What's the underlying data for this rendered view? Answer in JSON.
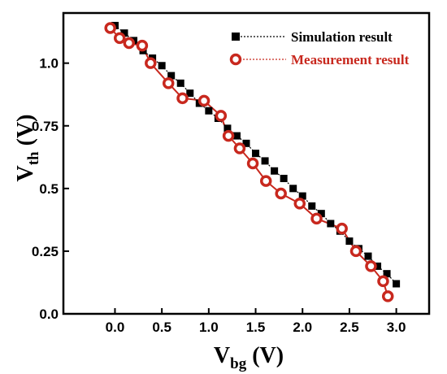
{
  "chart_data": {
    "type": "scatter",
    "xlabel": {
      "main": "V",
      "sub": "bg",
      "unit": " (V)"
    },
    "ylabel": {
      "main": "V",
      "sub": "th",
      "unit": " (V)"
    },
    "xlim": [
      -0.55,
      3.35
    ],
    "ylim": [
      0.0,
      1.2
    ],
    "x_ticks": [
      0.0,
      0.5,
      1.0,
      1.5,
      2.0,
      2.5,
      3.0
    ],
    "x_tick_labels": [
      "0.0",
      "0.5",
      "1.0",
      "1.5",
      "2.0",
      "2.5",
      "3.0"
    ],
    "y_ticks": [
      0.0,
      0.25,
      0.5,
      0.75,
      1.0
    ],
    "y_tick_labels": [
      "0.0",
      "0.25",
      "0.5",
      "0.75",
      "1.0"
    ],
    "legend_position": "top-right",
    "grid": false,
    "series": [
      {
        "name": "Simulation result",
        "marker": "square",
        "color": "#000000",
        "line_style": "dotted",
        "x": [
          0.0,
          0.1,
          0.2,
          0.3,
          0.4,
          0.5,
          0.6,
          0.7,
          0.8,
          0.9,
          1.0,
          1.1,
          1.2,
          1.3,
          1.4,
          1.5,
          1.6,
          1.7,
          1.8,
          1.9,
          2.0,
          2.1,
          2.2,
          2.3,
          2.4,
          2.5,
          2.6,
          2.7,
          2.8,
          2.9,
          3.0
        ],
        "y": [
          1.15,
          1.12,
          1.09,
          1.05,
          1.02,
          0.99,
          0.95,
          0.92,
          0.88,
          0.84,
          0.81,
          0.78,
          0.74,
          0.71,
          0.68,
          0.64,
          0.61,
          0.57,
          0.54,
          0.5,
          0.47,
          0.43,
          0.4,
          0.36,
          0.33,
          0.29,
          0.26,
          0.23,
          0.19,
          0.16,
          0.12
        ]
      },
      {
        "name": "Measurement result",
        "marker": "circle",
        "color": "#c8281e",
        "line_style": "solid",
        "x": [
          -0.05,
          0.05,
          0.15,
          0.29,
          0.38,
          0.57,
          0.72,
          0.95,
          1.13,
          1.21,
          1.33,
          1.47,
          1.61,
          1.77,
          1.97,
          2.15,
          2.42,
          2.57,
          2.73,
          2.86,
          2.91
        ],
        "y": [
          1.14,
          1.1,
          1.08,
          1.07,
          1.0,
          0.92,
          0.86,
          0.85,
          0.79,
          0.71,
          0.66,
          0.6,
          0.53,
          0.48,
          0.44,
          0.38,
          0.34,
          0.25,
          0.19,
          0.13,
          0.07
        ]
      }
    ]
  },
  "colors": {
    "simulation": "#000000",
    "measurement": "#c8281e",
    "measurement_fill": "#ffffff",
    "measurement_legend_text": "#c8281e"
  }
}
